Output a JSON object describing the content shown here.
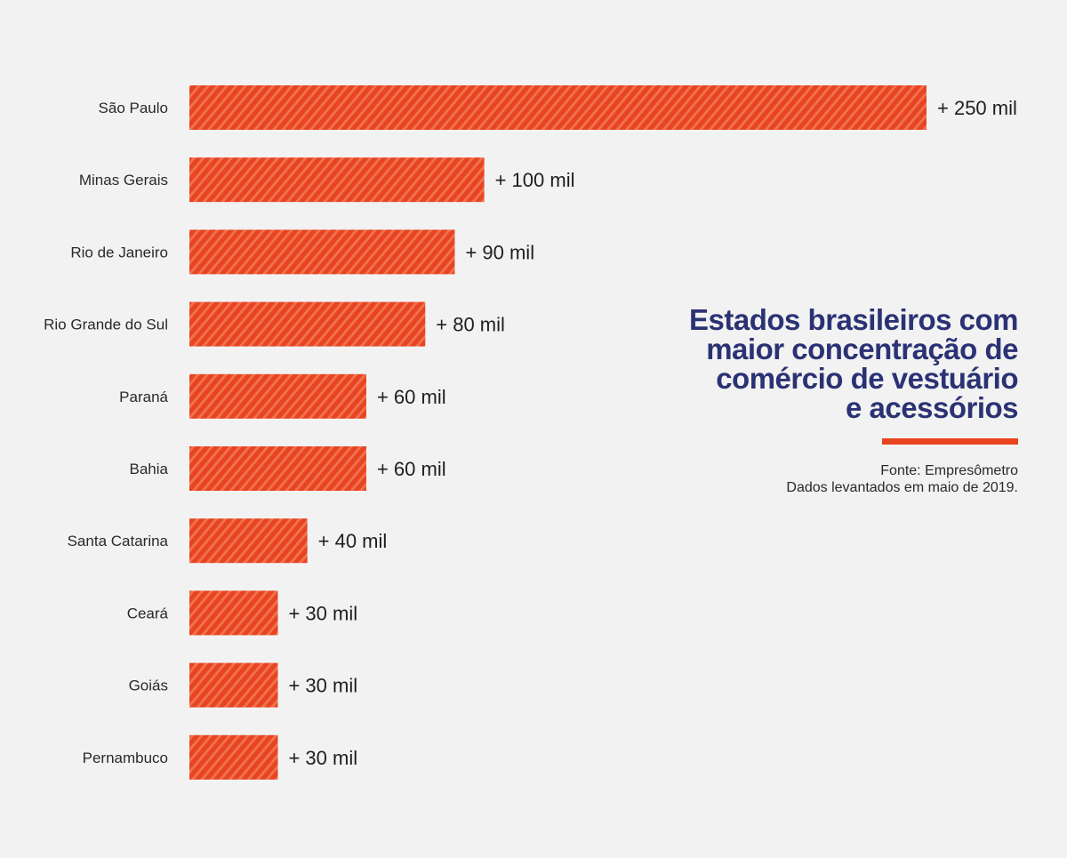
{
  "colors": {
    "background": "#f2f2f2",
    "bar": "#e8441f",
    "bar_stripe": "#f07050",
    "title": "#2b3274",
    "accent_rule": "#e8441f"
  },
  "title": "Estados brasileiros com\nmaior concentração de\ncomércio de vestuário\ne acessórios",
  "source_line1": "Fonte: Empresômetro",
  "source_line2": "Dados levantados em maio de 2019.",
  "chart_data": {
    "type": "bar",
    "orientation": "horizontal",
    "categories": [
      "São Paulo",
      "Minas Gerais",
      "Rio de Janeiro",
      "Rio Grande do Sul",
      "Paraná",
      "Bahia",
      "Santa Catarina",
      "Ceará",
      "Goiás",
      "Pernambuco"
    ],
    "values": [
      250000,
      100000,
      90000,
      80000,
      60000,
      60000,
      40000,
      30000,
      30000,
      30000
    ],
    "value_labels": [
      "+ 250 mil",
      "+ 100 mil",
      "+ 90 mil",
      "+ 80 mil",
      "+ 60 mil",
      "+ 60 mil",
      "+ 40 mil",
      "+ 30 mil",
      "+ 30 mil",
      "+ 30 mil"
    ],
    "title": "Estados brasileiros com maior concentração de comércio de vestuário e acessórios",
    "xlim": [
      0,
      250000
    ],
    "grid": false,
    "legend": "none"
  }
}
